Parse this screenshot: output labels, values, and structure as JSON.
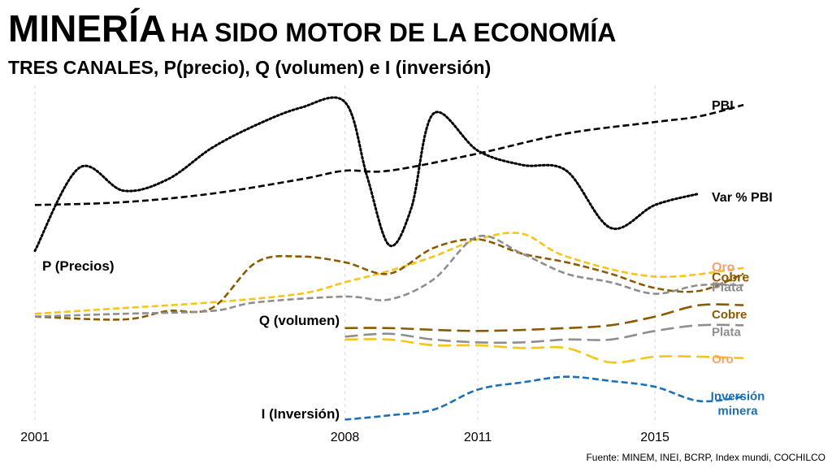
{
  "title": {
    "main": "MINERÍA",
    "rest": "HA SIDO MOTOR DE LA ECONOMÍA"
  },
  "subtitle": "TRES CANALES, P(precio), Q (volumen) e I (inversión)",
  "source": "Fuente: MINEM, INEI, BCRP, Index mundi, COCHILCO",
  "chart_data": {
    "type": "line",
    "x_ticks": [
      "2001",
      "2008",
      "2011",
      "2015"
    ],
    "x_range": [
      2001,
      2017.2
    ],
    "grid": "vertical dashed lines at labeled years",
    "y_axis": "none (indexed, no printed scale)",
    "group_labels": {
      "p": "P (Precios)",
      "q": "Q (volumen)",
      "i": "I (Inversión)"
    },
    "colors": {
      "pbi": "#000000",
      "oro": "#f5c518",
      "oro_label": "#f4a26b",
      "cobre": "#8b5a00",
      "plata": "#8e8e8e",
      "inversion": "#1a6fb5"
    },
    "series": [
      {
        "id": "pbi",
        "label": "PBI",
        "color_key": "pbi",
        "label_color_key": "pbi",
        "dash": "dashed",
        "label_at": [
          2017.2,
          9.6
        ],
        "points": [
          [
            2001,
            6.1
          ],
          [
            2003,
            6.2
          ],
          [
            2005,
            6.5
          ],
          [
            2007,
            7.0
          ],
          [
            2008,
            7.3
          ],
          [
            2009,
            7.3
          ],
          [
            2011,
            7.9
          ],
          [
            2013,
            8.6
          ],
          [
            2015,
            9.0
          ],
          [
            2016,
            9.2
          ],
          [
            2017,
            9.6
          ]
        ]
      },
      {
        "id": "var_pbi",
        "label": "Var % PBI",
        "color_key": "pbi",
        "label_color_key": "pbi",
        "dash": "dotted",
        "label_at": [
          2017.2,
          6.4
        ],
        "points": [
          [
            2001,
            4.5
          ],
          [
            2002,
            7.4
          ],
          [
            2003,
            6.6
          ],
          [
            2004,
            7.0
          ],
          [
            2005,
            8.1
          ],
          [
            2006,
            8.9
          ],
          [
            2007,
            9.5
          ],
          [
            2008,
            9.7
          ],
          [
            2008.5,
            7.1
          ],
          [
            2009,
            4.7
          ],
          [
            2009.5,
            6.0
          ],
          [
            2010,
            9.3
          ],
          [
            2011,
            8.0
          ],
          [
            2012,
            7.5
          ],
          [
            2013,
            7.3
          ],
          [
            2014,
            5.3
          ],
          [
            2015,
            6.1
          ],
          [
            2016,
            6.5
          ]
        ]
      },
      {
        "id": "p_oro",
        "label": "Oro",
        "color_key": "oro",
        "label_color_key": "oro_label",
        "dash": "dashed",
        "label_at": [
          2017.2,
          3.95
        ],
        "points": [
          [
            2001,
            2.3
          ],
          [
            2003,
            2.5
          ],
          [
            2005,
            2.7
          ],
          [
            2007,
            3.0
          ],
          [
            2008,
            3.4
          ],
          [
            2009,
            3.8
          ],
          [
            2010,
            4.3
          ],
          [
            2011,
            4.9
          ],
          [
            2012,
            5.1
          ],
          [
            2013,
            4.3
          ],
          [
            2015,
            3.6
          ],
          [
            2017,
            3.9
          ]
        ]
      },
      {
        "id": "p_cobre",
        "label": "Cobre",
        "color_key": "cobre",
        "label_color_key": "cobre",
        "dash": "dashed",
        "label_at": [
          2017.2,
          3.6
        ],
        "points": [
          [
            2001,
            2.2
          ],
          [
            2003,
            2.1
          ],
          [
            2004,
            2.4
          ],
          [
            2005,
            2.5
          ],
          [
            2006,
            4.1
          ],
          [
            2007,
            4.3
          ],
          [
            2008,
            4.1
          ],
          [
            2009,
            3.7
          ],
          [
            2010,
            4.6
          ],
          [
            2011,
            4.9
          ],
          [
            2012,
            4.4
          ],
          [
            2013,
            4.1
          ],
          [
            2014,
            3.7
          ],
          [
            2015,
            3.2
          ],
          [
            2016,
            3.1
          ],
          [
            2017,
            3.7
          ]
        ]
      },
      {
        "id": "p_plata",
        "label": "Plata",
        "color_key": "plata",
        "label_color_key": "plata",
        "dash": "dashed",
        "label_at": [
          2017.2,
          3.25
        ],
        "points": [
          [
            2001,
            2.2
          ],
          [
            2003,
            2.3
          ],
          [
            2005,
            2.4
          ],
          [
            2006,
            2.7
          ],
          [
            2008,
            2.9
          ],
          [
            2009,
            2.8
          ],
          [
            2010,
            3.5
          ],
          [
            2011,
            5.0
          ],
          [
            2012,
            4.4
          ],
          [
            2013,
            3.7
          ],
          [
            2014,
            3.4
          ],
          [
            2015,
            3.0
          ],
          [
            2016,
            3.3
          ],
          [
            2017,
            3.3
          ]
        ]
      },
      {
        "id": "q_cobre",
        "label": "Cobre",
        "color_key": "cobre",
        "label_color_key": "cobre",
        "dash": "long-dashed",
        "label_at": [
          2017.2,
          2.3
        ],
        "points": [
          [
            2008,
            1.8
          ],
          [
            2009,
            1.8
          ],
          [
            2011,
            1.7
          ],
          [
            2013,
            1.8
          ],
          [
            2014,
            1.9
          ],
          [
            2015,
            2.2
          ],
          [
            2016,
            2.6
          ],
          [
            2017,
            2.6
          ]
        ]
      },
      {
        "id": "q_plata",
        "label": "Plata",
        "color_key": "plata",
        "label_color_key": "plata",
        "dash": "long-dashed",
        "label_at": [
          2017.2,
          1.7
        ],
        "points": [
          [
            2008,
            1.5
          ],
          [
            2009,
            1.6
          ],
          [
            2010,
            1.4
          ],
          [
            2011,
            1.3
          ],
          [
            2012,
            1.3
          ],
          [
            2013,
            1.4
          ],
          [
            2014,
            1.4
          ],
          [
            2015,
            1.7
          ],
          [
            2016,
            1.9
          ],
          [
            2017,
            1.9
          ]
        ]
      },
      {
        "id": "q_oro",
        "label": "Oro",
        "color_key": "oro",
        "label_color_key": "oro_label",
        "dash": "long-dashed",
        "label_at": [
          2017.2,
          0.75
        ],
        "points": [
          [
            2008,
            1.4
          ],
          [
            2009,
            1.4
          ],
          [
            2010,
            1.2
          ],
          [
            2011,
            1.2
          ],
          [
            2012,
            1.1
          ],
          [
            2013,
            1.1
          ],
          [
            2014,
            0.6
          ],
          [
            2015,
            0.8
          ],
          [
            2016,
            0.8
          ],
          [
            2017,
            0.75
          ]
        ]
      },
      {
        "id": "inversion",
        "label": "Inversión minera",
        "color_key": "inversion",
        "label_color_key": "inversion",
        "dash": "dashed",
        "label_at": [
          2017.2,
          -0.55
        ],
        "points": [
          [
            2008,
            -1.4
          ],
          [
            2009,
            -1.25
          ],
          [
            2010,
            -1.05
          ],
          [
            2011,
            -0.35
          ],
          [
            2012,
            -0.1
          ],
          [
            2013,
            0.1
          ],
          [
            2014,
            -0.05
          ],
          [
            2015,
            -0.25
          ],
          [
            2016,
            -0.75
          ],
          [
            2017,
            -0.6
          ]
        ]
      }
    ]
  }
}
